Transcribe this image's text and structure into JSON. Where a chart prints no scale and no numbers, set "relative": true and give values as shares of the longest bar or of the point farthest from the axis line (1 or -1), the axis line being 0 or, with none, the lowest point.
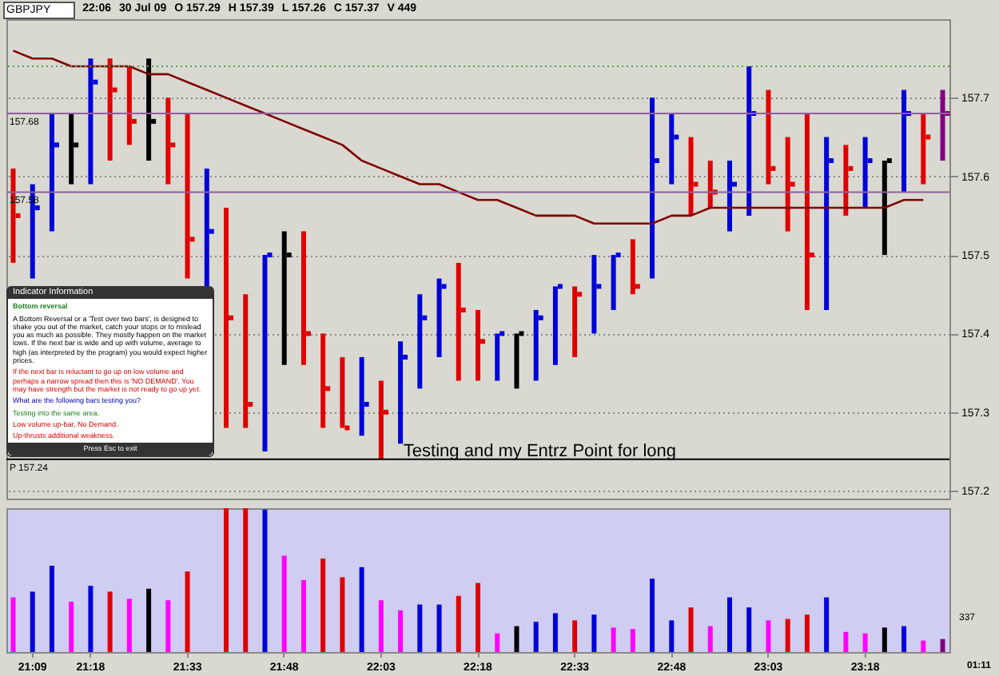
{
  "chart_data": [
    {
      "type": "bar",
      "categories": [
        null,
        "21:09",
        null,
        null,
        "21:18",
        null,
        null,
        null,
        null,
        "21:33",
        null,
        null,
        null,
        null,
        "21:48",
        null,
        null,
        null,
        null,
        "22:03",
        null,
        null,
        null,
        null,
        "22:18",
        null,
        null,
        null,
        null,
        "22:33",
        null,
        null,
        null,
        null,
        "22:48",
        null,
        null,
        null,
        null,
        "23:03",
        null,
        null,
        null,
        null,
        "23:18",
        null,
        null,
        null,
        null
      ],
      "base": [
        157.49,
        157.47,
        157.53,
        157.59,
        157.59,
        157.62,
        157.64,
        157.62,
        157.59,
        157.47,
        157.46,
        157.28,
        157.28,
        157.25,
        157.36,
        157.36,
        157.28,
        157.28,
        157.27,
        157.24,
        157.26,
        157.33,
        157.37,
        157.34,
        157.34,
        157.34,
        157.33,
        157.34,
        157.36,
        157.37,
        157.4,
        157.43,
        157.45,
        157.47,
        157.59,
        157.55,
        157.56,
        157.53,
        157.55,
        157.59,
        157.53,
        157.43,
        157.43,
        157.55,
        157.56,
        157.5,
        157.58,
        157.59,
        157.62
      ],
      "values": [
        0.12,
        0.12,
        0.15,
        0.09,
        0.16,
        0.13,
        0.1,
        0.13,
        0.11,
        0.21,
        0.15,
        0.28,
        0.17,
        0.25,
        0.17,
        0.17,
        0.12,
        0.09,
        0.1,
        0.1,
        0.13,
        0.12,
        0.1,
        0.15,
        0.09,
        0.06,
        0.07,
        0.09,
        0.1,
        0.09,
        0.1,
        0.07,
        0.07,
        0.23,
        0.09,
        0.1,
        0.06,
        0.09,
        0.19,
        0.12,
        0.12,
        0.25,
        0.22,
        0.09,
        0.09,
        0.12,
        0.13,
        0.09,
        0.09
      ],
      "colors": [
        "#e00000",
        "#0000d8",
        "#0000d8",
        "#000000",
        "#0000d8",
        "#e00000",
        "#e00000",
        "#000000",
        "#e00000",
        "#e00000",
        "#0000d8",
        "#e00000",
        "#e00000",
        "#0000d8",
        "#000000",
        "#e00000",
        "#e00000",
        "#e00000",
        "#0000d8",
        "#e00000",
        "#0000d8",
        "#0000d8",
        "#0000d8",
        "#e00000",
        "#e00000",
        "#0000d8",
        "#000000",
        "#0000d8",
        "#0000d8",
        "#e00000",
        "#0000d8",
        "#0000d8",
        "#e00000",
        "#0000d8",
        "#0000d8",
        "#e00000",
        "#e00000",
        "#0000d8",
        "#0000d8",
        "#e00000",
        "#e00000",
        "#e00000",
        "#0000d8",
        "#e00000",
        "#0000d8",
        "#000000",
        "#0000d8",
        "#e00000",
        "#800080"
      ],
      "series": [
        {
          "type": "scatter",
          "marker": "square",
          "colors": [
            "#e00000",
            "#0000d8",
            "#0000d8",
            "#000000",
            "#0000d8",
            "#e00000",
            "#e00000",
            "#000000",
            "#e00000",
            "#e00000",
            "#0000d8",
            "#e00000",
            "#e00000",
            "#0000d8",
            "#000000",
            "#e00000",
            "#e00000",
            "#e00000",
            "#0000d8",
            "#e00000",
            "#0000d8",
            "#0000d8",
            "#0000d8",
            "#e00000",
            "#e00000",
            "#0000d8",
            "#000000",
            "#0000d8",
            "#0000d8",
            "#e00000",
            "#0000d8",
            "#0000d8",
            "#e00000",
            "#0000d8",
            "#0000d8",
            "#e00000",
            "#e00000",
            "#0000d8",
            "#0000d8",
            "#e00000",
            "#e00000",
            "#e00000",
            "#0000d8",
            "#e00000",
            "#0000d8",
            "#000000",
            "#0000d8",
            "#e00000",
            "#800080"
          ],
          "values": [
            157.55,
            157.56,
            157.64,
            157.64,
            157.72,
            157.71,
            157.67,
            157.67,
            157.64,
            157.52,
            157.53,
            157.42,
            157.31,
            157.5,
            157.5,
            157.4,
            157.33,
            157.28,
            157.31,
            157.3,
            157.37,
            157.42,
            157.46,
            157.43,
            157.39,
            157.4,
            157.4,
            157.42,
            157.46,
            157.45,
            157.46,
            157.5,
            157.46,
            157.62,
            157.65,
            157.59,
            157.58,
            157.59,
            157.68,
            157.61,
            157.59,
            157.5,
            157.62,
            157.61,
            157.62,
            157.62,
            157.68,
            157.65,
            157.68
          ]
        },
        {
          "type": "line",
          "color": "#800000",
          "values": [
            157.76,
            157.75,
            157.75,
            157.74,
            157.74,
            157.74,
            157.74,
            157.73,
            157.73,
            157.72,
            157.71,
            157.7,
            157.69,
            157.68,
            157.67,
            157.66,
            157.65,
            157.64,
            157.62,
            157.61,
            157.6,
            157.59,
            157.59,
            157.58,
            157.57,
            157.57,
            157.56,
            157.55,
            157.55,
            157.55,
            157.54,
            157.54,
            157.54,
            157.54,
            157.55,
            157.55,
            157.56,
            157.56,
            157.56,
            157.56,
            157.56,
            157.56,
            157.56,
            157.56,
            157.56,
            157.56,
            157.57,
            157.57,
            null
          ]
        }
      ],
      "ylim": [
        157.19,
        157.8
      ],
      "yticks": [
        157.2,
        157.3,
        157.4,
        157.5,
        157.6,
        157.7
      ],
      "grid": "y",
      "tick_labels": "y",
      "ref_lines": [
        {
          "axis": "y",
          "value": 157.74,
          "label": null,
          "color": "#50a050",
          "line_style": "dotted"
        },
        {
          "axis": "y",
          "value": 157.68,
          "label": "157.68",
          "color": "#9060a0"
        },
        {
          "axis": "y",
          "value": 157.58,
          "label": "157.58",
          "color": "#9060a0"
        },
        {
          "axis": "y",
          "value": 157.24,
          "label": "P 157.24",
          "color": "#000000"
        }
      ],
      "annotations": [
        "GBPJPY",
        "22:06",
        "30 Jul 09",
        "O 157.29",
        "H 157.39",
        "L 157.26",
        "C 157.37",
        "V 449",
        {
          "text": "Testing and my Entrz Point for long",
          "x": "22:03",
          "y": 157.24
        }
      ]
    },
    {
      "type": "bar",
      "relative": true,
      "tick_labels": "x",
      "categories": [
        null,
        "21:09",
        null,
        null,
        "21:18",
        null,
        null,
        null,
        null,
        "21:33",
        null,
        null,
        null,
        null,
        "21:48",
        null,
        null,
        null,
        null,
        "22:03",
        null,
        null,
        null,
        null,
        "22:18",
        null,
        null,
        null,
        null,
        "22:33",
        null,
        null,
        null,
        null,
        "22:48",
        null,
        null,
        null,
        null,
        "23:03",
        null,
        null,
        null,
        null,
        "23:18",
        null,
        null,
        null,
        null
      ],
      "values": [
        0.38,
        0.42,
        0.6,
        0.35,
        0.46,
        0.42,
        0.37,
        0.44,
        0.36,
        0.56,
        null,
        1,
        1,
        0.99,
        0.67,
        0.5,
        0.65,
        0.52,
        0.59,
        0.36,
        0.29,
        0.33,
        0.33,
        0.39,
        0.48,
        0.13,
        0.18,
        0.21,
        0.27,
        0.22,
        0.26,
        0.17,
        0.16,
        0.51,
        0.22,
        0.31,
        0.18,
        0.38,
        0.31,
        0.22,
        0.23,
        0.26,
        0.38,
        0.14,
        0.13,
        0.17,
        0.18,
        0.08,
        0.09
      ],
      "colors": [
        "#ff00ff",
        "#0000d8",
        "#0000d8",
        "#ff00ff",
        "#0000d8",
        "#e00000",
        "#ff00ff",
        "#000000",
        "#ff00ff",
        "#e00000",
        "#0000d8",
        "#e00000",
        "#e00000",
        "#0000d8",
        "#ff00ff",
        "#ff00ff",
        "#e00000",
        "#e00000",
        "#0000d8",
        "#ff00ff",
        "#ff00ff",
        "#0000d8",
        "#0000d8",
        "#e00000",
        "#e00000",
        "#ff00ff",
        "#000000",
        "#0000d8",
        "#0000d8",
        "#e00000",
        "#0000d8",
        "#ff00ff",
        "#ff00ff",
        "#0000d8",
        "#0000d8",
        "#e00000",
        "#ff00ff",
        "#0000d8",
        "#0000d8",
        "#ff00ff",
        "#e00000",
        "#e00000",
        "#0000d8",
        "#ff00ff",
        "#ff00ff",
        "#000000",
        "#0000d8",
        "#ff00ff",
        "#800080"
      ],
      "annotations": [
        "337",
        "01:11"
      ]
    },
    {
      "type": "other",
      "title": "Indicator Information",
      "subtitle": "Bottom reversal",
      "annotations": [
        "A Bottom Reversal or a 'Test over two bars', is designed to shake you out of the market, catch your stops or to mislead you as much as possible. They mostly happen on the market lows. If the next bar is wide and up with volume, average to high (as interpreted by the program) you would expect higher prices.",
        "If the next bar is reluctant to go up on low volume and perhaps a narrow spread then this is 'NO DEMAND'. You may have strength but the market is not ready to go up yet.",
        "What are the following bars testing you?",
        "Testing into the same area.",
        "Low volume up-bar, No Demand.",
        "Up-thrusts additional weakness.",
        "Press Esc to exit"
      ],
      "colors": [
        "#000000",
        "#e00000",
        "#0000c0",
        "#208020",
        "#e00000",
        "#e00000",
        "#ffffff"
      ]
    }
  ]
}
